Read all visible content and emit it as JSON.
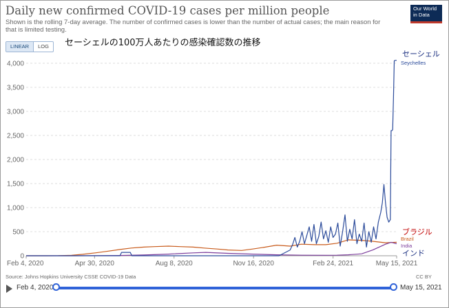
{
  "header": {
    "title": "Daily new confirmed COVID-19 cases per million people",
    "subtitle": "Shown is the rolling 7-day average. The number of confirmed cases is lower than the number of actual cases; the main reason for that is limited testing.",
    "logo_line1": "Our World",
    "logo_line2": "in Data"
  },
  "scale_toggle": {
    "linear": "LINEAR",
    "log": "LOG",
    "selected": "LINEAR"
  },
  "annotation": "セーシェルの100万人あたりの感染確認数の推移",
  "footer": {
    "source": "Source: Johns Hopkins University CSSE COVID-19 Data",
    "license": "CC BY"
  },
  "timeline": {
    "start_label": "Feb 4, 2020",
    "end_label": "May 15, 2021"
  },
  "chart_data": {
    "type": "line",
    "title": "Daily new confirmed COVID-19 cases per million people",
    "xlabel": "",
    "ylabel": "",
    "x_range": [
      "2020-02-04",
      "2021-05-15"
    ],
    "ylim": [
      0,
      4000
    ],
    "y_ticks": [
      0,
      500,
      1000,
      1500,
      2000,
      2500,
      3000,
      3500,
      4000
    ],
    "y_tick_labels": [
      "0",
      "500",
      "1,000",
      "1,500",
      "2,000",
      "2,500",
      "3,000",
      "3,500",
      "4,000"
    ],
    "x_ticks": [
      "2020-02-04",
      "2020-04-30",
      "2020-08-08",
      "2020-11-16",
      "2021-02-24",
      "2021-05-15"
    ],
    "x_tick_labels": [
      "Feb 4, 2020",
      "Apr 30, 2020",
      "Aug 8, 2020",
      "Nov 16, 2020",
      "Feb 24, 2021",
      "May 15, 2021"
    ],
    "grid": "horizontal dashed",
    "legend": "right end labels",
    "series": [
      {
        "name": "Seychelles",
        "jp_label": "セーシェル",
        "color": "#2a4a9a",
        "x": [
          "2020-02-04",
          "2020-06-01",
          "2020-06-03",
          "2020-06-14",
          "2020-06-16",
          "2020-09-01",
          "2020-12-18",
          "2021-01-01",
          "2021-01-04",
          "2021-01-07",
          "2021-01-10",
          "2021-01-13",
          "2021-01-16",
          "2021-01-19",
          "2021-01-22",
          "2021-01-25",
          "2021-01-28",
          "2021-01-31",
          "2021-02-03",
          "2021-02-06",
          "2021-02-09",
          "2021-02-12",
          "2021-02-15",
          "2021-02-18",
          "2021-02-21",
          "2021-02-24",
          "2021-02-27",
          "2021-03-02",
          "2021-03-05",
          "2021-03-08",
          "2021-03-11",
          "2021-03-14",
          "2021-03-17",
          "2021-03-20",
          "2021-03-23",
          "2021-03-26",
          "2021-03-29",
          "2021-04-01",
          "2021-04-04",
          "2021-04-07",
          "2021-04-10",
          "2021-04-13",
          "2021-04-16",
          "2021-04-19",
          "2021-04-22",
          "2021-04-25",
          "2021-04-27",
          "2021-04-29",
          "2021-05-01",
          "2021-05-03",
          "2021-05-05",
          "2021-05-07",
          "2021-05-08",
          "2021-05-09",
          "2021-05-10",
          "2021-05-11",
          "2021-05-12",
          "2021-05-13",
          "2021-05-15"
        ],
        "values": [
          0,
          0,
          70,
          70,
          0,
          0,
          0,
          120,
          230,
          380,
          180,
          300,
          500,
          250,
          420,
          600,
          300,
          650,
          250,
          400,
          700,
          350,
          520,
          280,
          600,
          380,
          450,
          680,
          200,
          500,
          850,
          300,
          550,
          350,
          750,
          250,
          450,
          300,
          680,
          180,
          500,
          280,
          600,
          350,
          700,
          900,
          1100,
          1480,
          1100,
          800,
          700,
          750,
          2600,
          2600,
          2620,
          3300,
          4050,
          4060,
          4060
        ]
      },
      {
        "name": "Brazil",
        "jp_label": "ブラジル",
        "color": "#c85a1a",
        "x": [
          "2020-02-04",
          "2020-03-01",
          "2020-03-15",
          "2020-04-01",
          "2020-04-15",
          "2020-05-01",
          "2020-05-15",
          "2020-06-01",
          "2020-06-15",
          "2020-07-01",
          "2020-07-15",
          "2020-08-01",
          "2020-08-15",
          "2020-09-01",
          "2020-09-15",
          "2020-10-01",
          "2020-10-15",
          "2020-11-01",
          "2020-11-15",
          "2020-12-01",
          "2020-12-15",
          "2021-01-01",
          "2021-01-15",
          "2021-02-01",
          "2021-02-15",
          "2021-03-01",
          "2021-03-15",
          "2021-04-01",
          "2021-04-15",
          "2021-05-01",
          "2021-05-15"
        ],
        "values": [
          0,
          0,
          2,
          10,
          30,
          60,
          90,
          130,
          160,
          180,
          190,
          200,
          190,
          180,
          160,
          140,
          120,
          110,
          140,
          180,
          220,
          200,
          240,
          230,
          230,
          260,
          330,
          320,
          300,
          270,
          280
        ]
      },
      {
        "name": "India",
        "jp_label": "インド",
        "color": "#7a3a9a",
        "x": [
          "2020-02-04",
          "2020-04-01",
          "2020-06-01",
          "2020-07-01",
          "2020-08-01",
          "2020-09-01",
          "2020-09-17",
          "2020-10-15",
          "2020-11-15",
          "2020-12-15",
          "2021-01-15",
          "2021-02-15",
          "2021-03-01",
          "2021-03-15",
          "2021-04-01",
          "2021-04-15",
          "2021-05-01",
          "2021-05-08",
          "2021-05-15"
        ],
        "values": [
          0,
          0,
          5,
          15,
          35,
          60,
          70,
          50,
          35,
          20,
          12,
          10,
          12,
          20,
          40,
          120,
          240,
          280,
          250
        ]
      }
    ]
  }
}
